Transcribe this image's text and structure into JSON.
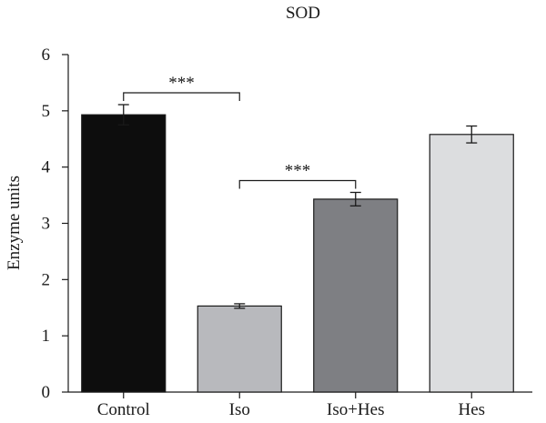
{
  "chart_data": {
    "type": "bar",
    "title": "SOD",
    "xlabel": "",
    "ylabel": "Enzyme units",
    "ylim": [
      0,
      6
    ],
    "yticks": [
      "0",
      "1",
      "2",
      "3",
      "4",
      "5",
      "6"
    ],
    "categories": [
      "Control",
      "Iso",
      "Iso+Hes",
      "Hes"
    ],
    "values": [
      4.93,
      1.53,
      3.43,
      4.58
    ],
    "errors": [
      0.18,
      0.04,
      0.12,
      0.15
    ],
    "colors": [
      "#0d0d0d",
      "#b8b9bd",
      "#7e7f83",
      "#dcdddf"
    ],
    "grid": false,
    "annotations": [
      {
        "text": "***",
        "from": "Control",
        "to": "Iso"
      },
      {
        "text": "***",
        "from": "Iso",
        "to": "Iso+Hes"
      }
    ]
  }
}
